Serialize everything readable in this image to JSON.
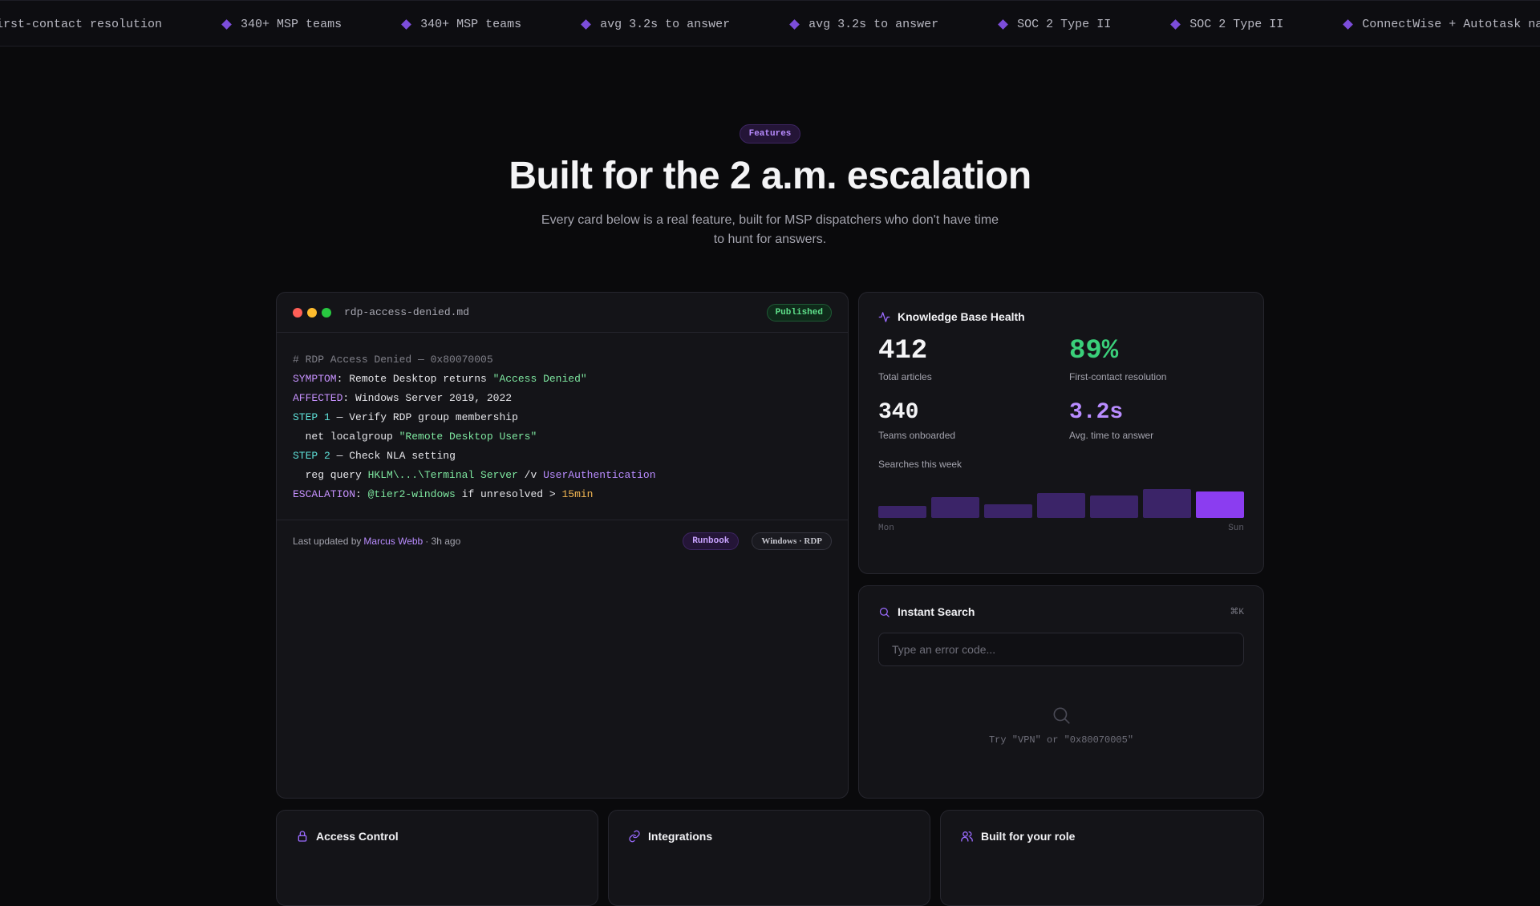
{
  "ticker": {
    "items": [
      "First-contact resolution",
      "340+ MSP teams",
      "340+ MSP teams",
      "avg 3.2s to answer",
      "avg 3.2s to answer",
      "SOC 2 Type II",
      "SOC 2 Type II",
      "ConnectWise + Autotask native"
    ]
  },
  "hero": {
    "badge": "Features",
    "title": "Built for the 2 a.m. escalation",
    "subtitle": "Every card below is a real feature, built for MSP dispatchers who don't have time to hunt for answers."
  },
  "editor": {
    "filename": "rdp-access-denied.md",
    "status": "Published",
    "lines": {
      "l1": "# RDP Access Denied — 0x80070005",
      "l2_key": "SYMPTOM",
      "l2_text": ": Remote Desktop returns ",
      "l2_str": "\"Access Denied\"",
      "l3_key": "AFFECTED",
      "l3_text": ": Windows Server 2019, 2022",
      "l4_key": "STEP",
      "l4_num": "1",
      "l4_text": " — Verify RDP group membership",
      "l5_text": "  net localgroup ",
      "l5_str": "\"Remote Desktop Users\"",
      "l6_key": "STEP",
      "l6_num": "2",
      "l6_text": " — Check NLA setting",
      "l7_text": "  reg query ",
      "l7_str": "HKLM\\...\\Terminal Server",
      "l7_flag": " /v ",
      "l7_hl": "UserAuthentication",
      "l8_key": "ESCALATION",
      "l8_text": ": ",
      "l8_str": "@tier2-windows",
      "l8_text2": " if unresolved > ",
      "l8_num": "15min"
    },
    "footer": {
      "prefix": "Last updated by",
      "author": "Marcus Webb",
      "suffix": "· 3h ago",
      "tag1": "Runbook",
      "tag2": "Windows · RDP"
    }
  },
  "health": {
    "title": "Knowledge Base Health",
    "stats": [
      {
        "value": "412",
        "label": "Total articles"
      },
      {
        "value": "89%",
        "label": "First-contact resolution"
      },
      {
        "value": "340",
        "label": "Teams onboarded"
      },
      {
        "value": "3.2s",
        "label": "Avg. time to answer"
      }
    ],
    "searches_label": "Searches this week",
    "bars": [
      0.34,
      0.58,
      0.38,
      0.7,
      0.63,
      0.82,
      0.74
    ],
    "bar_active_index": 6,
    "axis_start": "Mon",
    "axis_end": "Sun"
  },
  "search": {
    "title": "Instant Search",
    "shortcut": "⌘K",
    "placeholder": "Type an error code...",
    "hint": "Try \"VPN\" or \"0x80070005\""
  },
  "bottom": {
    "access": "Access Control",
    "integrations": "Integrations",
    "role": "Built for your role"
  },
  "colors": {
    "accent": "#8b3df0",
    "bar": "#3b2468",
    "green": "#3ad07a",
    "purple": "#b98cff"
  }
}
